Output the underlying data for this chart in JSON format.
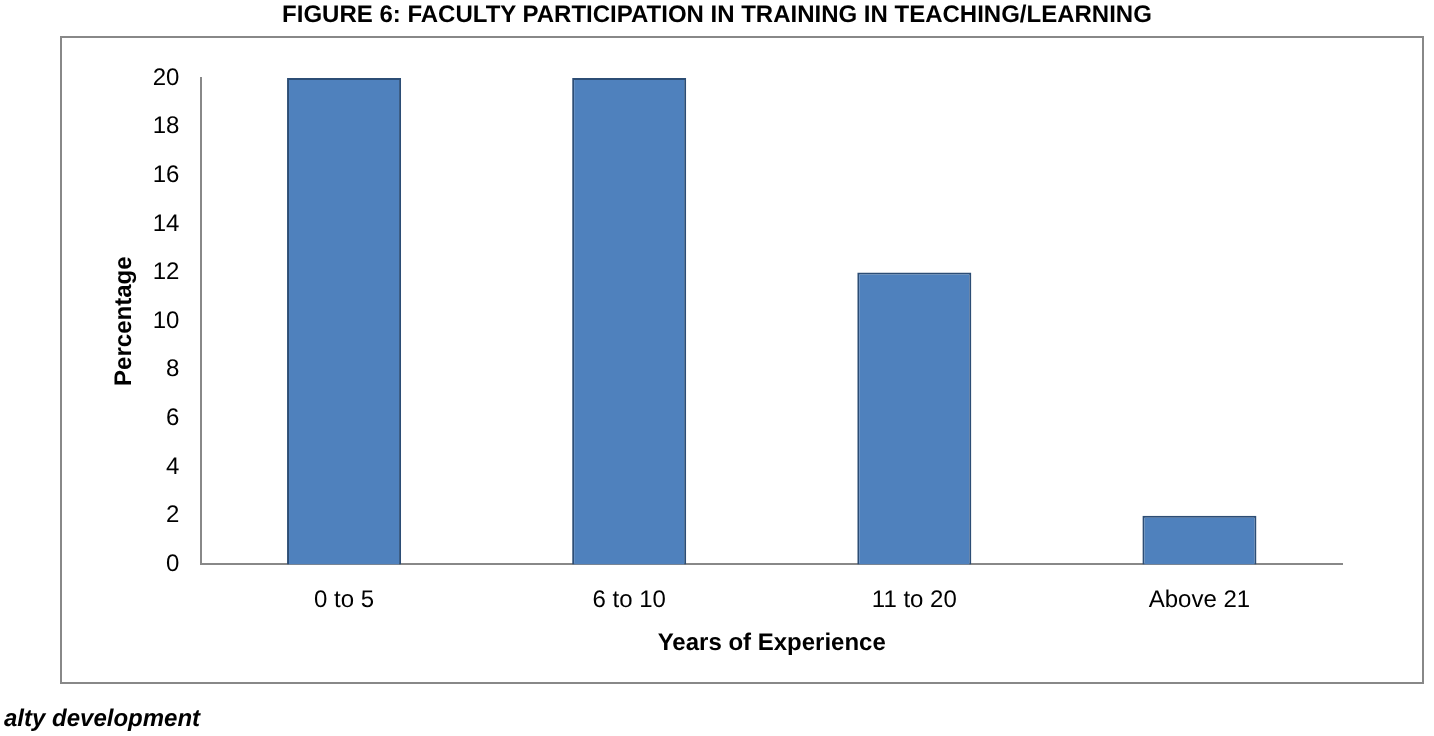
{
  "chart_data": {
    "type": "bar",
    "title": "FIGURE 6: FACULTY PARTICIPATION IN TRAINING IN TEACHING/LEARNING",
    "xlabel": "Years of Experience",
    "ylabel": "Percentage",
    "categories": [
      "0 to 5",
      "6 to 10",
      "11 to 20",
      "Above 21"
    ],
    "values": [
      20,
      20,
      12,
      2
    ],
    "color": "#4f81bd",
    "ylim": [
      0,
      20
    ],
    "yticks": [
      0,
      2,
      4,
      6,
      8,
      10,
      12,
      14,
      16,
      18,
      20
    ],
    "grid": false,
    "legend": false,
    "annotations": [
      "alty development"
    ]
  }
}
